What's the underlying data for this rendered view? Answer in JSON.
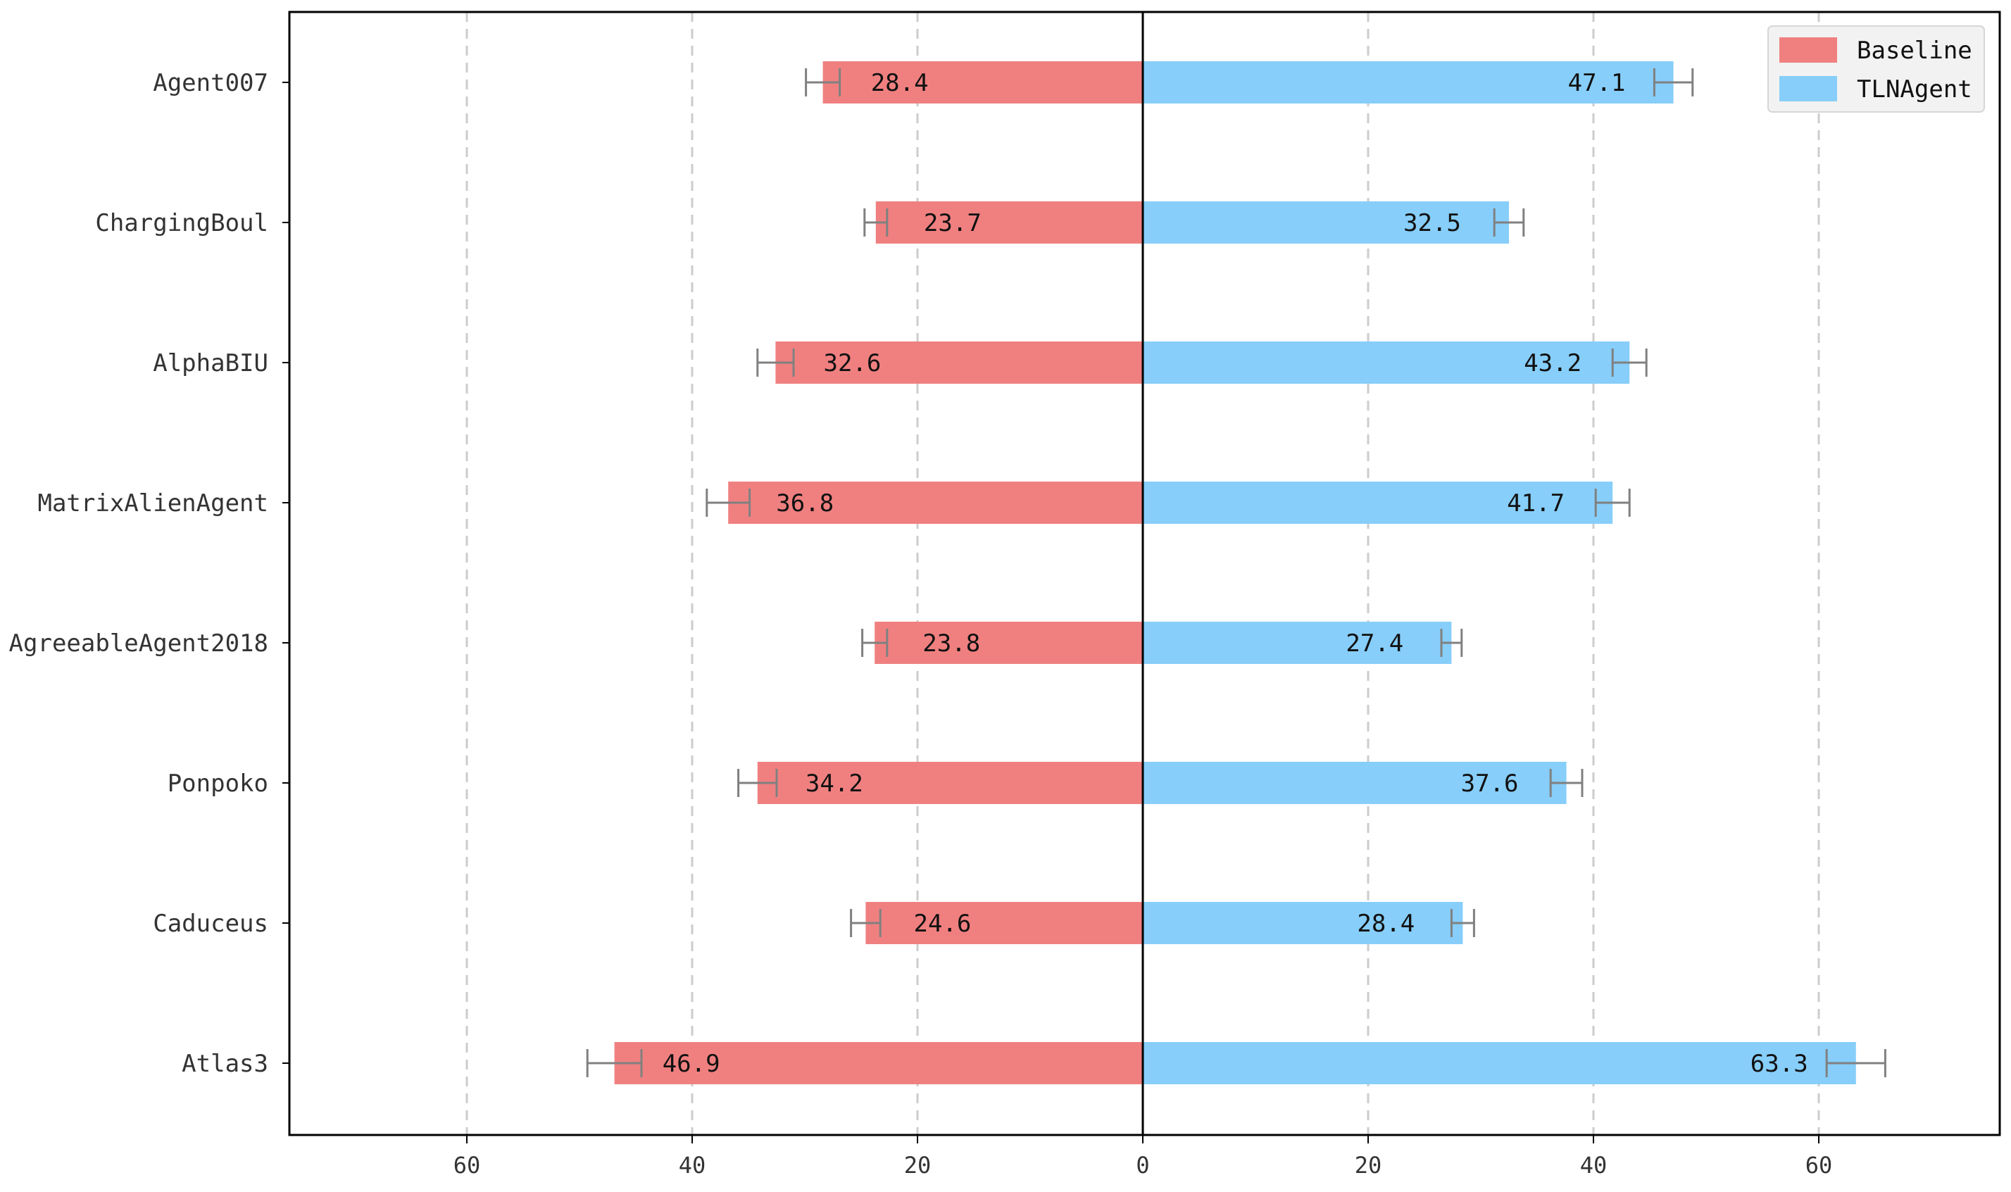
{
  "chart_data": {
    "type": "bar",
    "orientation": "horizontal-diverging",
    "title": "",
    "xlabel": "",
    "ylabel": "",
    "categories": [
      "Agent007",
      "ChargingBoul",
      "AlphaBIU",
      "MatrixAlienAgent",
      "AgreeableAgent2018",
      "Ponpoko",
      "Caduceus",
      "Atlas3"
    ],
    "series": [
      {
        "name": "Baseline",
        "direction": "left",
        "color": "#f08080",
        "values": [
          28.4,
          23.7,
          32.6,
          36.8,
          23.8,
          34.2,
          24.6,
          46.9
        ],
        "labels": [
          "28.4",
          "23.7",
          "32.6",
          "36.8",
          "23.8",
          "34.2",
          "24.6",
          "46.9"
        ],
        "errors": [
          1.5,
          1.0,
          1.6,
          1.9,
          1.1,
          1.7,
          1.3,
          2.4
        ]
      },
      {
        "name": "TLNAgent",
        "direction": "right",
        "color": "#87cefa",
        "values": [
          47.1,
          32.5,
          43.2,
          41.7,
          27.4,
          37.6,
          28.4,
          63.3
        ],
        "labels": [
          "47.1",
          "32.5",
          "43.2",
          "41.7",
          "27.4",
          "37.6",
          "28.4",
          "63.3"
        ],
        "errors": [
          1.7,
          1.3,
          1.5,
          1.5,
          0.9,
          1.4,
          1.0,
          2.6
        ]
      }
    ],
    "xlim": [
      -75,
      76
    ],
    "xticks": [
      -60,
      -40,
      -20,
      0,
      20,
      40,
      60
    ],
    "xtick_labels": [
      "60",
      "40",
      "20",
      "0",
      "20",
      "40",
      "60"
    ],
    "grid": "vertical-dashed",
    "legend_position": "top-right",
    "error_bar_color": "#808080",
    "grid_color": "#cccccc",
    "zero_line_color": "#000000"
  }
}
